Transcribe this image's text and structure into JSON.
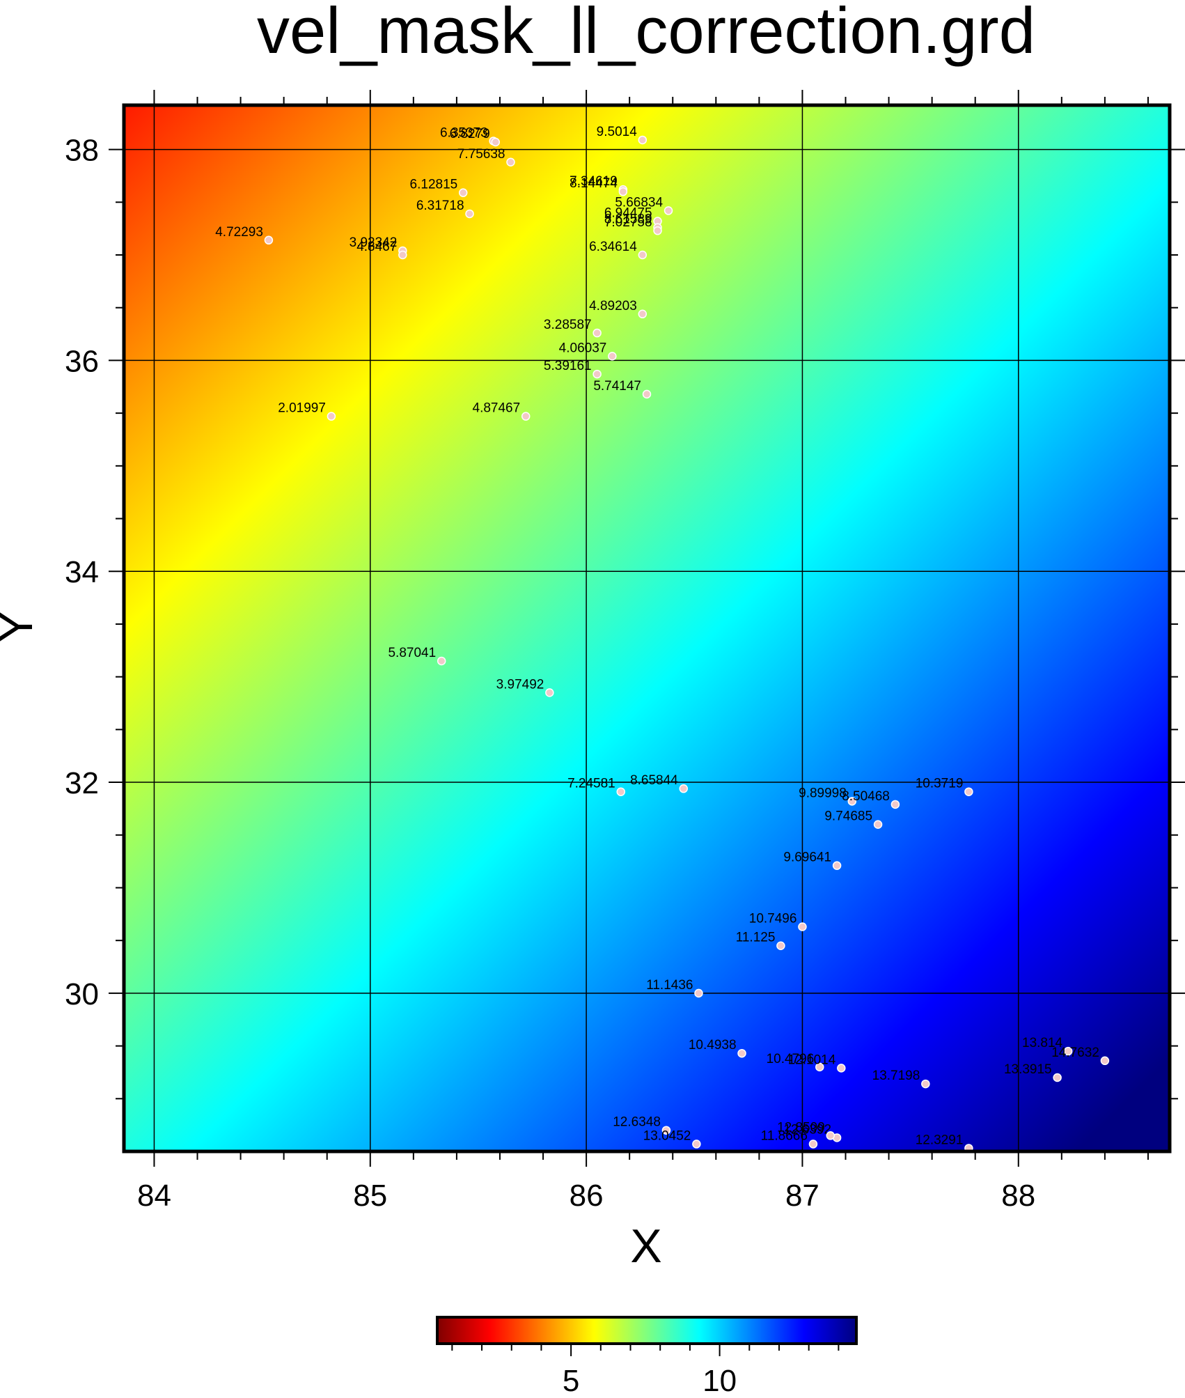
{
  "chart_data": {
    "type": "heatmap",
    "title": "vel_mask_ll_correction.grd",
    "xlabel": "X",
    "ylabel": "Y",
    "xlim": [
      83.86,
      88.7
    ],
    "ylim": [
      28.5,
      38.42
    ],
    "x_ticks": [
      84,
      85,
      86,
      87,
      88
    ],
    "y_ticks": [
      30,
      32,
      34,
      36,
      38
    ],
    "x_tick_labels": [
      "84",
      "85",
      "86",
      "87",
      "88"
    ],
    "y_tick_labels": [
      "30",
      "32",
      "34",
      "36",
      "38"
    ],
    "grid": true,
    "colormap": "jet (dark red → red → orange → yellow → green → cyan → blue → dark blue)",
    "colormap_stops": [
      "#7f0000",
      "#ff0000",
      "#ff8000",
      "#ffff00",
      "#7fff7f",
      "#00ffff",
      "#0080ff",
      "#0000ff",
      "#00007f"
    ],
    "colorbar": {
      "range": [
        0.5,
        14.6
      ],
      "ticks": [
        5,
        10
      ],
      "tick_labels": [
        "5",
        "10"
      ],
      "minor_ticks": [
        1,
        2,
        3,
        4,
        6,
        7,
        8,
        9,
        11,
        12,
        13,
        14
      ],
      "placement": "bottom"
    },
    "points": [
      {
        "x": 85.57,
        "y": 38.08,
        "label": "6.35373"
      },
      {
        "x": 85.58,
        "y": 38.07,
        "label": "6.8279"
      },
      {
        "x": 85.65,
        "y": 37.88,
        "label": "7.75638"
      },
      {
        "x": 86.26,
        "y": 38.09,
        "label": "9.5014"
      },
      {
        "x": 85.43,
        "y": 37.59,
        "label": "6.12815"
      },
      {
        "x": 85.46,
        "y": 37.39,
        "label": "6.31718"
      },
      {
        "x": 86.17,
        "y": 37.62,
        "label": "7.34619"
      },
      {
        "x": 86.17,
        "y": 37.6,
        "label": "8.14474"
      },
      {
        "x": 86.38,
        "y": 37.42,
        "label": "5.66834"
      },
      {
        "x": 86.33,
        "y": 37.32,
        "label": "6.94475"
      },
      {
        "x": 86.33,
        "y": 37.26,
        "label": "8.61589"
      },
      {
        "x": 86.33,
        "y": 37.23,
        "label": "7.02758"
      },
      {
        "x": 84.53,
        "y": 37.14,
        "label": "4.72293"
      },
      {
        "x": 85.15,
        "y": 37.04,
        "label": "3.92342"
      },
      {
        "x": 85.15,
        "y": 37.0,
        "label": "4.8467"
      },
      {
        "x": 86.26,
        "y": 37.0,
        "label": "6.34614"
      },
      {
        "x": 86.26,
        "y": 36.44,
        "label": "4.89203"
      },
      {
        "x": 86.05,
        "y": 36.26,
        "label": "3.28587"
      },
      {
        "x": 86.12,
        "y": 36.04,
        "label": "4.06037"
      },
      {
        "x": 86.05,
        "y": 35.87,
        "label": "5.39161"
      },
      {
        "x": 86.28,
        "y": 35.68,
        "label": "5.74147"
      },
      {
        "x": 84.82,
        "y": 35.47,
        "label": "2.01997"
      },
      {
        "x": 85.72,
        "y": 35.47,
        "label": "4.87467"
      },
      {
        "x": 85.33,
        "y": 33.15,
        "label": "5.87041"
      },
      {
        "x": 85.83,
        "y": 32.85,
        "label": "3.97492"
      },
      {
        "x": 86.16,
        "y": 31.91,
        "label": "7.24581"
      },
      {
        "x": 86.45,
        "y": 31.94,
        "label": "8.65844"
      },
      {
        "x": 87.23,
        "y": 31.82,
        "label": "9.89998"
      },
      {
        "x": 87.43,
        "y": 31.79,
        "label": "8.50468"
      },
      {
        "x": 87.77,
        "y": 31.91,
        "label": "10.3719"
      },
      {
        "x": 87.35,
        "y": 31.6,
        "label": "9.74685"
      },
      {
        "x": 87.16,
        "y": 31.21,
        "label": "9.69641"
      },
      {
        "x": 87.0,
        "y": 30.63,
        "label": "10.7496"
      },
      {
        "x": 86.9,
        "y": 30.45,
        "label": "11.125"
      },
      {
        "x": 86.52,
        "y": 30.0,
        "label": "11.1436"
      },
      {
        "x": 86.72,
        "y": 29.43,
        "label": "10.4938"
      },
      {
        "x": 87.08,
        "y": 29.3,
        "label": "10.4796"
      },
      {
        "x": 87.18,
        "y": 29.29,
        "label": "12.1014"
      },
      {
        "x": 87.57,
        "y": 29.14,
        "label": "13.7198"
      },
      {
        "x": 88.23,
        "y": 29.45,
        "label": "13.814"
      },
      {
        "x": 88.4,
        "y": 29.36,
        "label": "14.7632"
      },
      {
        "x": 88.18,
        "y": 29.2,
        "label": "13.3915"
      },
      {
        "x": 86.37,
        "y": 28.7,
        "label": "12.6348"
      },
      {
        "x": 86.51,
        "y": 28.57,
        "label": "13.0452"
      },
      {
        "x": 87.16,
        "y": 28.63,
        "label": "12.6392"
      },
      {
        "x": 87.13,
        "y": 28.65,
        "label": "12.8509"
      },
      {
        "x": 87.05,
        "y": 28.57,
        "label": "11.8666"
      },
      {
        "x": 87.77,
        "y": 28.53,
        "label": "12.3291"
      }
    ]
  }
}
